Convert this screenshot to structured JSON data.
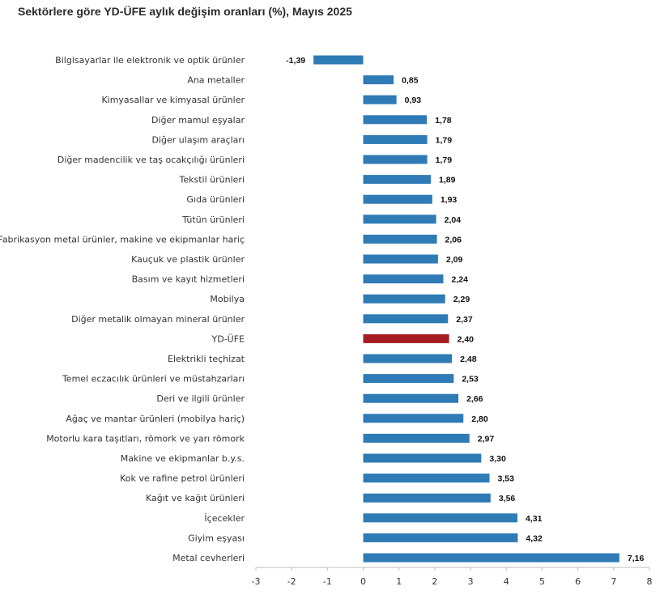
{
  "title": "Sektörlere göre YD-ÜFE aylık değişim oranları (%), Mayıs 2025",
  "colors": {
    "bar": "#2E7BB6",
    "highlight": "#A51C22",
    "axis": "#BFBFBF"
  },
  "chart_data": {
    "type": "bar",
    "orientation": "horizontal",
    "title": "Sektörlere göre YD-ÜFE aylık değişim oranları (%), Mayıs 2025",
    "xlabel": "",
    "ylabel": "",
    "xlim": [
      -3,
      8
    ],
    "xticks": [
      -3,
      -2,
      -1,
      0,
      1,
      2,
      3,
      4,
      5,
      6,
      7,
      8
    ],
    "grid": false,
    "highlight_category": "YD-ÜFE",
    "categories": [
      "Bilgisayarlar ile elektronik ve optik ürünler",
      "Ana metaller",
      "Kimyasallar ve kimyasal ürünler",
      "Diğer mamul eşyalar",
      "Diğer ulaşım araçları",
      "Diğer madencilik ve taş ocakçılığı ürünleri",
      "Tekstil ürünleri",
      "Gıda ürünleri",
      "Tütün ürünleri",
      "Fabrikasyon metal ürünler, makine ve ekipmanlar hariç",
      "Kauçuk ve plastik ürünler",
      "Basım ve kayıt hizmetleri",
      "Mobilya",
      "Diğer metalik olmayan mineral ürünler",
      "YD-ÜFE",
      "Elektrikli teçhizat",
      "Temel eczacılık ürünleri ve müstahzarları",
      "Deri ve ilgili ürünler",
      "Ağaç ve mantar ürünleri (mobilya hariç)",
      "Motorlu kara taşıtları, römork ve yarı römork",
      "Makine ve ekipmanlar b.y.s.",
      "Kok ve rafine petrol ürünleri",
      "Kağıt ve kağıt ürünleri",
      "İçecekler",
      "Giyim eşyası",
      "Metal cevherleri"
    ],
    "values": [
      -1.39,
      0.85,
      0.93,
      1.78,
      1.79,
      1.79,
      1.89,
      1.93,
      2.04,
      2.06,
      2.09,
      2.24,
      2.29,
      2.37,
      2.4,
      2.48,
      2.53,
      2.66,
      2.8,
      2.97,
      3.3,
      3.53,
      3.56,
      4.31,
      4.32,
      7.16
    ],
    "value_labels": [
      "-1,39",
      "0,85",
      "0,93",
      "1,78",
      "1,79",
      "1,79",
      "1,89",
      "1,93",
      "2,04",
      "2,06",
      "2,09",
      "2,24",
      "2,29",
      "2,37",
      "2,40",
      "2,48",
      "2,53",
      "2,66",
      "2,80",
      "2,97",
      "3,30",
      "3,53",
      "3,56",
      "4,31",
      "4,32",
      "7,16"
    ]
  }
}
